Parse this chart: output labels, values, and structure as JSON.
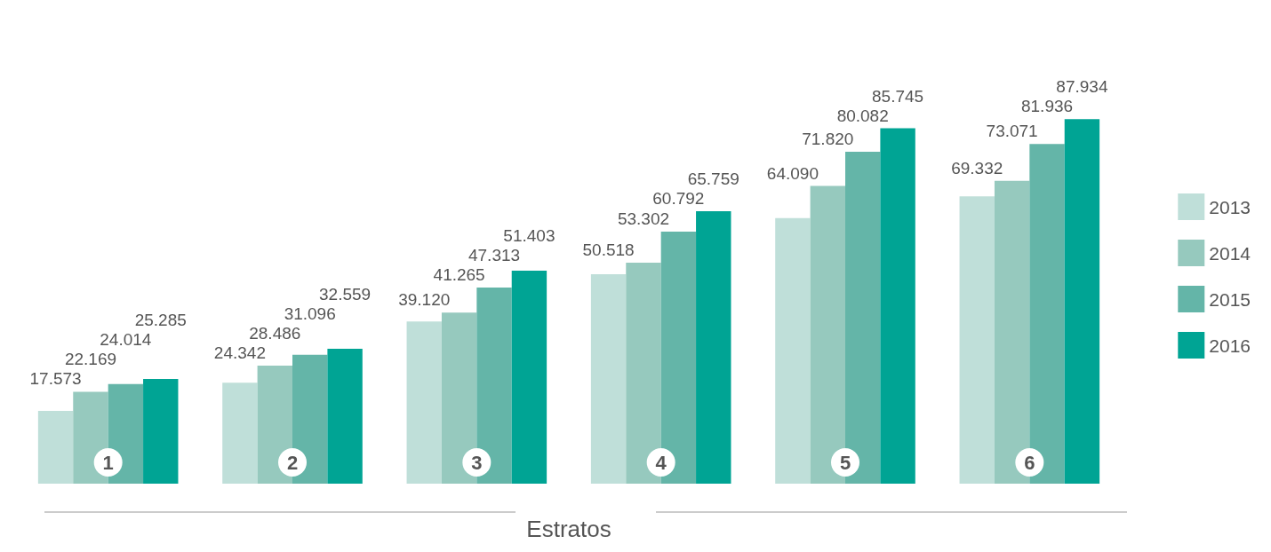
{
  "chart_data": {
    "type": "bar",
    "xlabel": "Estratos",
    "categories": [
      "1",
      "2",
      "3",
      "4",
      "5",
      "6"
    ],
    "series": [
      {
        "name": "2013",
        "color": "#bfdfd9",
        "values": [
          17573,
          24342,
          39120,
          50518,
          64090,
          69332
        ],
        "value_labels": [
          "17.573",
          "24.342",
          "39.120",
          "50.518",
          "64.090",
          "69.332"
        ]
      },
      {
        "name": "2014",
        "color": "#96c9be",
        "values": [
          22169,
          28486,
          41265,
          53302,
          71820,
          73071
        ],
        "value_labels": [
          "22.169",
          "28.486",
          "41.265",
          "53.302",
          "71.820",
          "73.071"
        ]
      },
      {
        "name": "2015",
        "color": "#64b5a8",
        "values": [
          24014,
          31096,
          47313,
          60792,
          80082,
          81936
        ],
        "value_labels": [
          "24.014",
          "31.096",
          "47.313",
          "60.792",
          "80.082",
          "81.936"
        ]
      },
      {
        "name": "2016",
        "color": "#00a494",
        "values": [
          25285,
          32559,
          51403,
          65759,
          85745,
          87934
        ],
        "value_labels": [
          "25.285",
          "32.559",
          "51.403",
          "65.759",
          "85.745",
          "87.934"
        ]
      }
    ],
    "legend": "right",
    "grid": false
  }
}
